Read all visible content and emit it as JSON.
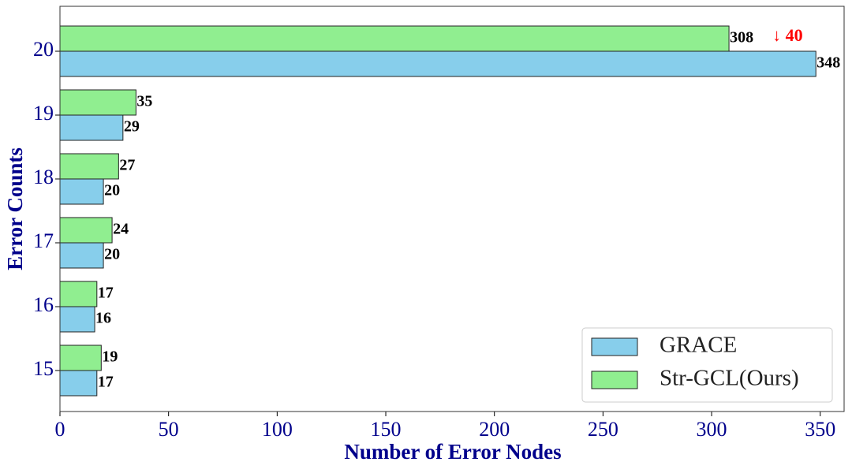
{
  "chart_data": {
    "type": "bar",
    "orientation": "horizontal",
    "xlabel": "Number of Error Nodes",
    "ylabel": "Error Counts",
    "categories": [
      "15",
      "16",
      "17",
      "18",
      "19",
      "20"
    ],
    "series": [
      {
        "name": "GRACE",
        "color": "#87ceeb",
        "values": [
          17,
          16,
          20,
          20,
          29,
          348
        ]
      },
      {
        "name": "Str-GCL(Ours)",
        "color": "#90ee90",
        "values": [
          19,
          17,
          24,
          27,
          35,
          308
        ]
      }
    ],
    "xlim": [
      0,
      361
    ],
    "xticks": [
      0,
      50,
      100,
      150,
      200,
      250,
      300,
      350
    ],
    "legend": "lower right",
    "annotations": [
      {
        "text": "↓ 40",
        "color": "#ff0000"
      }
    ]
  }
}
